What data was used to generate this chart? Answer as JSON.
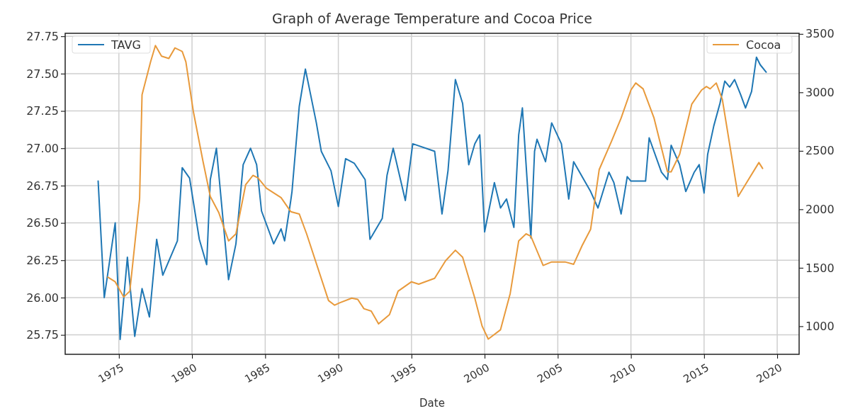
{
  "chart_data": {
    "type": "line",
    "title": "Graph of Average Temperature and Cocoa Price",
    "xlabel": "Date",
    "xlim": [
      "1971-05",
      "2021-07"
    ],
    "xticks": [
      {
        "value": "1975",
        "label": "1975"
      },
      {
        "value": "1980",
        "label": "1980"
      },
      {
        "value": "1985",
        "label": "1985"
      },
      {
        "value": "1990",
        "label": "1990"
      },
      {
        "value": "1995",
        "label": "1995"
      },
      {
        "value": "2000",
        "label": "2000"
      },
      {
        "value": "2005",
        "label": "2005"
      },
      {
        "value": "2010",
        "label": "2010"
      },
      {
        "value": "2015",
        "label": "2015"
      },
      {
        "value": "2020",
        "label": "2020"
      }
    ],
    "ylim": [
      25.62,
      27.77
    ],
    "yticks": [
      {
        "value": 25.75,
        "label": "25.75"
      },
      {
        "value": 26,
        "label": "26.00"
      },
      {
        "value": 26.25,
        "label": "26.25"
      },
      {
        "value": 26.5,
        "label": "26.50"
      },
      {
        "value": 26.75,
        "label": "26.75"
      },
      {
        "value": 27,
        "label": "27.00"
      },
      {
        "value": 27.25,
        "label": "27.25"
      },
      {
        "value": 27.5,
        "label": "27.50"
      },
      {
        "value": 27.75,
        "label": "27.75"
      }
    ],
    "y2lim": [
      760,
      3505
    ],
    "y2ticks": [
      1000,
      1500,
      2000,
      2500,
      3000,
      3500
    ],
    "grid": true,
    "legend": "top",
    "series": [
      {
        "name": "TAVG",
        "color": "#1f77b4",
        "x": [
          "1973-08",
          "1974-01",
          "1974-10",
          "1975-02",
          "1975-08",
          "1976-02",
          "1976-08",
          "1977-02",
          "1977-08",
          "1978-01",
          "1979-01",
          "1979-05",
          "1979-11",
          "1980-07",
          "1981-01",
          "1981-04",
          "1981-09",
          "1982-07",
          "1983-01",
          "1983-07",
          "1984-01",
          "1984-06",
          "1984-10",
          "1985-08",
          "1986-02",
          "1986-05",
          "1986-10",
          "1986-11",
          "1987-05",
          "1987-10",
          "1988-01",
          "1988-07",
          "1988-11",
          "1989-07",
          "1990-01",
          "1990-07",
          "1991-02",
          "1991-11",
          "1992-03",
          "1993-01",
          "1993-05",
          "1993-10",
          "1994-08",
          "1995-02",
          "1996-08",
          "1997-02",
          "1997-07",
          "1998-01",
          "1998-07",
          "1998-12",
          "1999-05",
          "1999-09",
          "2000-01",
          "2000-09",
          "2001-02",
          "2001-07",
          "2002-01",
          "2002-05",
          "2002-08",
          "2003-03",
          "2003-06",
          "2003-08",
          "2004-03",
          "2004-08",
          "2005-04",
          "2005-10",
          "2006-02",
          "2007-04",
          "2007-10",
          "2008-07",
          "2008-11",
          "2009-05",
          "2009-10",
          "2010-01",
          "2011-01",
          "2011-04",
          "2012-02",
          "2012-07",
          "2012-10",
          "2013-05",
          "2013-10",
          "2014-05",
          "2014-09",
          "2015-01",
          "2015-04",
          "2015-09",
          "2016-02",
          "2016-06",
          "2016-10",
          "2017-02",
          "2017-07",
          "2017-11",
          "2018-04",
          "2018-08",
          "2018-11",
          "2019-04"
        ],
        "values": [
          26.78,
          26.0,
          26.5,
          25.72,
          26.27,
          25.74,
          26.06,
          25.87,
          26.39,
          26.15,
          26.38,
          26.87,
          26.8,
          26.39,
          26.22,
          26.79,
          27.0,
          26.12,
          26.36,
          26.89,
          27.0,
          26.89,
          26.58,
          26.36,
          26.46,
          26.38,
          26.65,
          26.71,
          27.28,
          27.53,
          27.41,
          27.17,
          26.98,
          26.85,
          26.61,
          26.93,
          26.9,
          26.79,
          26.39,
          26.53,
          26.82,
          27.0,
          26.65,
          27.03,
          26.98,
          26.56,
          26.85,
          27.46,
          27.3,
          26.89,
          27.03,
          27.09,
          26.44,
          26.77,
          26.6,
          26.66,
          26.47,
          27.09,
          27.27,
          26.4,
          26.98,
          27.06,
          26.91,
          27.17,
          27.03,
          26.66,
          26.91,
          26.71,
          26.6,
          26.84,
          26.77,
          26.56,
          26.81,
          26.78,
          26.78,
          27.07,
          26.84,
          26.79,
          27.02,
          26.89,
          26.71,
          26.84,
          26.89,
          26.7,
          26.96,
          27.15,
          27.3,
          27.45,
          27.41,
          27.46,
          27.36,
          27.27,
          27.38,
          27.61,
          27.56,
          27.51
        ]
      },
      {
        "name": "Cocoa",
        "color": "#e89a3c",
        "axis": "y2",
        "x": [
          "1974-04",
          "1974-10",
          "1975-05",
          "1975-10",
          "1976-06",
          "1976-08",
          "1977-03",
          "1977-07",
          "1977-12",
          "1978-06",
          "1978-11",
          "1979-05",
          "1979-08",
          "1980-02",
          "1980-10",
          "1981-04",
          "1981-11",
          "1982-07",
          "1983-01",
          "1983-09",
          "1984-03",
          "1984-07",
          "1985-02",
          "1986-02",
          "1986-10",
          "1987-05",
          "1987-11",
          "1989-05",
          "1989-10",
          "1990-02",
          "1990-12",
          "1991-05",
          "1991-10",
          "1992-04",
          "1992-10",
          "1993-07",
          "1994-02",
          "1995-01",
          "1995-07",
          "1996-08",
          "1997-05",
          "1998-01",
          "1998-07",
          "1999-05",
          "1999-11",
          "2000-04",
          "2001-02",
          "2001-10",
          "2002-05",
          "2002-11",
          "2003-03",
          "2004-01",
          "2004-08",
          "2005-07",
          "2006-02",
          "2006-09",
          "2007-04",
          "2007-11",
          "2008-09",
          "2009-05",
          "2010-01",
          "2010-05",
          "2010-11",
          "2011-08",
          "2012-07",
          "2012-10",
          "2013-05",
          "2014-03",
          "2014-11",
          "2015-03",
          "2015-06",
          "2015-11",
          "2016-04",
          "2017-05",
          "2018-10",
          "2019-01"
        ],
        "values": [
          1420,
          1380,
          1250,
          1300,
          2090,
          2980,
          3260,
          3400,
          3310,
          3290,
          3380,
          3350,
          3260,
          2840,
          2410,
          2110,
          1970,
          1730,
          1790,
          2210,
          2290,
          2270,
          2180,
          2100,
          1980,
          1960,
          1790,
          1220,
          1180,
          1200,
          1240,
          1230,
          1150,
          1130,
          1020,
          1100,
          1300,
          1380,
          1360,
          1410,
          1560,
          1650,
          1590,
          1240,
          1000,
          890,
          970,
          1280,
          1730,
          1790,
          1770,
          1520,
          1550,
          1550,
          1530,
          1690,
          1830,
          2340,
          2580,
          2780,
          3020,
          3080,
          3030,
          2780,
          2320,
          2320,
          2470,
          2900,
          3020,
          3050,
          3030,
          3080,
          2940,
          2110,
          2400,
          2350
        ]
      }
    ]
  }
}
